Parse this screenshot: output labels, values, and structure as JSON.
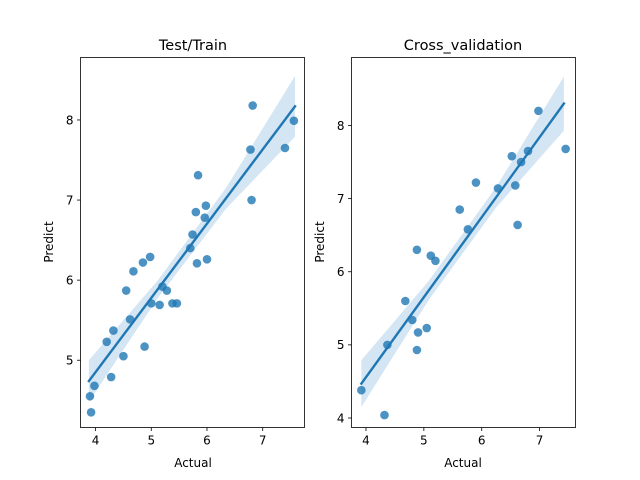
{
  "chart_data": [
    {
      "type": "scatter",
      "title": "Test/Train",
      "xlabel": "Actual",
      "ylabel": "Predict",
      "xlim": [
        3.73,
        7.75
      ],
      "ylim": [
        4.16,
        8.78
      ],
      "xticks": [
        4,
        5,
        6,
        7
      ],
      "yticks": [
        5,
        6,
        7,
        8
      ],
      "grid": false,
      "marker_color": "#1f77b4",
      "fit_color": "#1f77b4",
      "band_color": "#c6dcef",
      "points": [
        [
          3.9,
          4.55
        ],
        [
          3.92,
          4.35
        ],
        [
          3.98,
          4.68
        ],
        [
          4.2,
          5.23
        ],
        [
          4.28,
          4.79
        ],
        [
          4.32,
          5.37
        ],
        [
          4.5,
          5.05
        ],
        [
          4.55,
          5.87
        ],
        [
          4.62,
          5.51
        ],
        [
          4.68,
          6.11
        ],
        [
          4.85,
          6.22
        ],
        [
          4.88,
          5.17
        ],
        [
          4.98,
          6.29
        ],
        [
          5.0,
          5.71
        ],
        [
          5.15,
          5.69
        ],
        [
          5.2,
          5.92
        ],
        [
          5.28,
          5.87
        ],
        [
          5.38,
          5.71
        ],
        [
          5.46,
          5.71
        ],
        [
          5.7,
          6.4
        ],
        [
          5.74,
          6.57
        ],
        [
          5.8,
          6.85
        ],
        [
          5.82,
          6.21
        ],
        [
          5.84,
          7.31
        ],
        [
          5.96,
          6.78
        ],
        [
          5.98,
          6.93
        ],
        [
          6.0,
          6.26
        ],
        [
          6.78,
          7.63
        ],
        [
          6.8,
          7.0
        ],
        [
          6.82,
          8.18
        ],
        [
          7.4,
          7.65
        ],
        [
          7.56,
          7.99
        ]
      ],
      "fit_line": [
        [
          3.88,
          4.74
        ],
        [
          7.58,
          8.17
        ]
      ],
      "band_half_width": [
        0.26,
        0.11,
        0.13,
        0.38
      ]
    },
    {
      "type": "scatter",
      "title": "Cross_validation",
      "xlabel": "Actual",
      "ylabel": "Predict",
      "xlim": [
        3.75,
        7.62
      ],
      "ylim": [
        3.87,
        8.93
      ],
      "xticks": [
        4,
        5,
        6,
        7
      ],
      "yticks": [
        4,
        5,
        6,
        7,
        8
      ],
      "grid": false,
      "marker_color": "#1f77b4",
      "fit_color": "#1f77b4",
      "band_color": "#c6dcef",
      "points": [
        [
          3.92,
          4.38
        ],
        [
          4.32,
          4.04
        ],
        [
          4.37,
          5.0
        ],
        [
          4.68,
          5.6
        ],
        [
          4.8,
          5.34
        ],
        [
          4.88,
          6.3
        ],
        [
          4.9,
          5.17
        ],
        [
          4.88,
          4.93
        ],
        [
          5.05,
          5.23
        ],
        [
          5.12,
          6.22
        ],
        [
          5.2,
          6.15
        ],
        [
          5.62,
          6.85
        ],
        [
          5.76,
          6.58
        ],
        [
          5.9,
          7.22
        ],
        [
          6.28,
          7.14
        ],
        [
          6.52,
          7.58
        ],
        [
          6.58,
          7.18
        ],
        [
          6.62,
          6.64
        ],
        [
          6.68,
          7.5
        ],
        [
          6.8,
          7.65
        ],
        [
          6.98,
          8.2
        ],
        [
          7.45,
          7.68
        ]
      ],
      "fit_line": [
        [
          3.92,
          4.47
        ],
        [
          7.42,
          8.3
        ]
      ],
      "band_half_width": [
        0.32,
        0.13,
        0.14,
        0.37
      ]
    }
  ]
}
